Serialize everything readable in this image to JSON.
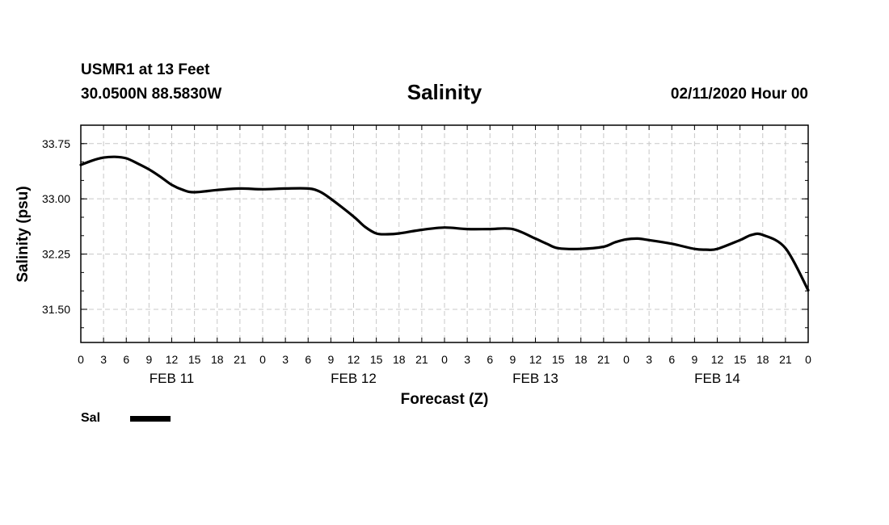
{
  "header": {
    "station": "USMR1 at 13 Feet",
    "coords": "30.0500N 88.5830W",
    "title": "Salinity",
    "timestamp": "02/11/2020 Hour 00"
  },
  "colors": {
    "line": "#000000",
    "grid": "#c8c8c8",
    "background": "#ffffff"
  },
  "chart_data": {
    "type": "line",
    "title": "Salinity",
    "xlabel": "Forecast (Z)",
    "ylabel": "Salinity (psu)",
    "xlim": [
      0,
      96
    ],
    "ylim": [
      31.05,
      34.0
    ],
    "x_tick_step_hours": 3,
    "x_tick_labels": [
      "0",
      "3",
      "6",
      "9",
      "12",
      "15",
      "18",
      "21",
      "0",
      "3",
      "6",
      "9",
      "12",
      "15",
      "18",
      "21",
      "0",
      "3",
      "6",
      "9",
      "12",
      "15",
      "18",
      "21",
      "0",
      "3",
      "6",
      "9",
      "12",
      "15",
      "18",
      "21",
      "0"
    ],
    "day_labels": [
      {
        "label": "FEB 11",
        "hour": 12
      },
      {
        "label": "FEB 12",
        "hour": 36
      },
      {
        "label": "FEB 13",
        "hour": 60
      },
      {
        "label": "FEB 14",
        "hour": 84
      }
    ],
    "y_ticks": [
      31.5,
      32.25,
      33.0,
      33.75
    ],
    "y_tick_labels": [
      "31.50",
      "32.25",
      "33.00",
      "33.75"
    ],
    "y_minor_step": 0.25,
    "grid": true,
    "legend_position": "bottom-left",
    "series": [
      {
        "name": "Sal",
        "x": [
          0,
          1.5,
          3,
          4.5,
          6,
          7.5,
          9,
          10.5,
          12,
          13.5,
          15,
          18,
          21,
          24,
          27,
          30,
          31.5,
          33,
          36,
          37.5,
          39,
          40.5,
          42,
          45,
          48,
          51,
          54,
          57,
          60,
          61.5,
          63,
          66,
          69,
          70.5,
          72,
          73.5,
          75,
          78,
          81,
          82.5,
          84,
          87,
          88.5,
          90,
          93,
          96
        ],
        "values": [
          33.46,
          33.52,
          33.56,
          33.57,
          33.55,
          33.48,
          33.4,
          33.3,
          33.19,
          33.12,
          33.09,
          33.12,
          33.14,
          33.13,
          33.14,
          33.14,
          33.1,
          33.0,
          32.76,
          32.62,
          32.53,
          32.52,
          32.53,
          32.58,
          32.61,
          32.59,
          32.59,
          32.59,
          32.46,
          32.39,
          32.33,
          32.32,
          32.35,
          32.41,
          32.45,
          32.46,
          32.44,
          32.39,
          32.32,
          32.31,
          32.32,
          32.44,
          32.51,
          32.51,
          32.33,
          31.76
        ]
      }
    ],
    "legend": [
      {
        "label": "Sal",
        "color": "#000000"
      }
    ]
  }
}
